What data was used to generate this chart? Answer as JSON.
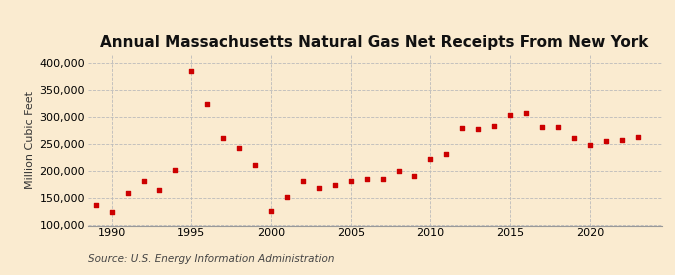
{
  "title": "Annual Massachusetts Natural Gas Net Receipts From New York",
  "ylabel": "Million Cubic Feet",
  "source": "Source: U.S. Energy Information Administration",
  "years": [
    1989,
    1990,
    1991,
    1992,
    1993,
    1994,
    1995,
    1996,
    1997,
    1998,
    1999,
    2000,
    2001,
    2002,
    2003,
    2004,
    2005,
    2006,
    2007,
    2008,
    2009,
    2010,
    2011,
    2012,
    2013,
    2014,
    2015,
    2016,
    2017,
    2018,
    2019,
    2020,
    2021,
    2022,
    2023
  ],
  "values": [
    137000,
    125000,
    160000,
    182000,
    165000,
    202000,
    385000,
    325000,
    262000,
    243000,
    212000,
    127000,
    152000,
    183000,
    170000,
    175000,
    183000,
    185000,
    185000,
    200000,
    192000,
    222000,
    233000,
    280000,
    278000,
    283000,
    305000,
    308000,
    282000,
    282000,
    262000,
    248000,
    257000,
    258000,
    263000
  ],
  "bg_color": "#faebd0",
  "dot_color": "#cc0000",
  "dot_size": 12,
  "ylim": [
    100000,
    415000
  ],
  "yticks": [
    100000,
    150000,
    200000,
    250000,
    300000,
    350000,
    400000
  ],
  "xticks": [
    1990,
    1995,
    2000,
    2005,
    2010,
    2015,
    2020
  ],
  "grid_color": "#bbbbbb",
  "title_fontsize": 11,
  "label_fontsize": 8,
  "tick_fontsize": 8,
  "source_fontsize": 7.5
}
